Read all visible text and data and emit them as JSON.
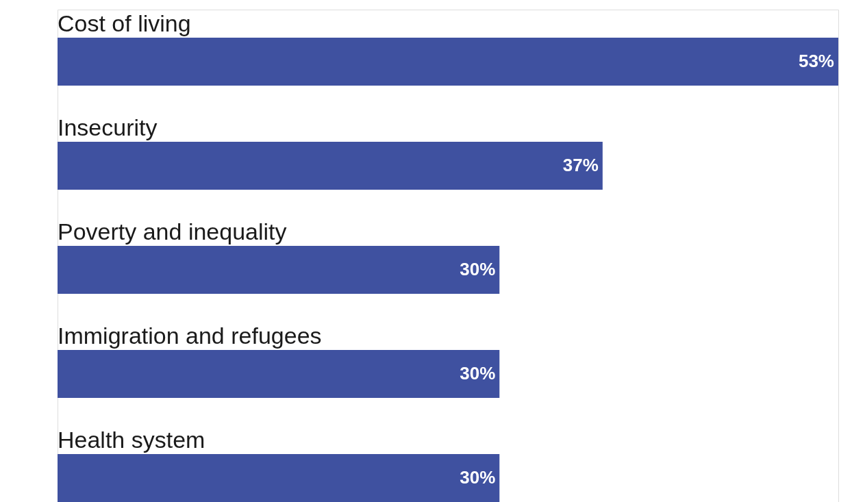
{
  "chart_data": {
    "type": "bar",
    "orientation": "horizontal",
    "categories": [
      "Cost of living",
      "Insecurity",
      "Poverty and inequality",
      "Immigration and refugees",
      "Health system"
    ],
    "values": [
      53,
      37,
      30,
      30,
      30
    ],
    "value_labels": [
      "53%",
      "37%",
      "30%",
      "30%",
      "30%"
    ],
    "color": "#3f51a0"
  }
}
